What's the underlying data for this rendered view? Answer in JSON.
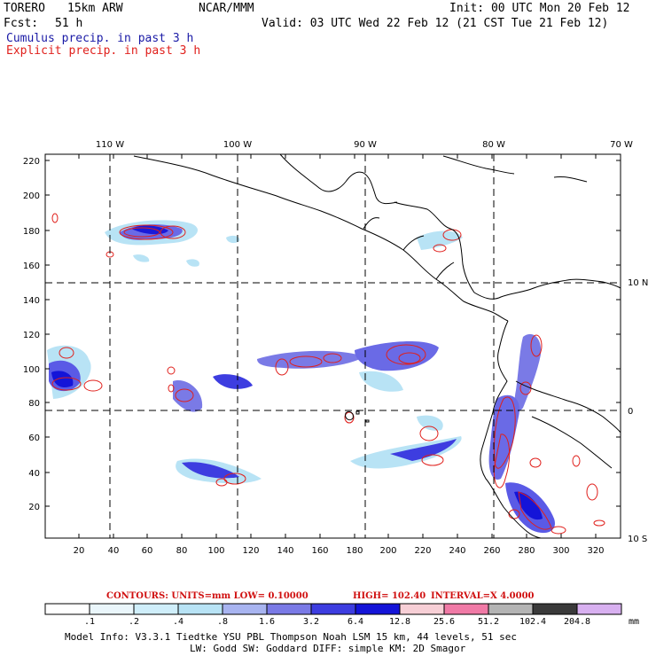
{
  "header": {
    "model": "TORERO",
    "resolution": "15km ARW",
    "org": "NCAR/MMM",
    "init": "Init: 00 UTC Mon 20 Feb 12",
    "fcst_label": "Fcst:",
    "fcst_value": "51 h",
    "valid": "Valid: 03 UTC Wed 22 Feb 12 (21 CST Tue 21 Feb 12)"
  },
  "legend": {
    "cumulus": "Cumulus precip. in past 3 h",
    "explicit": "Explicit precip. in past 3 h",
    "cumulus_color": "#1a1aa6",
    "explicit_color": "#e0201c"
  },
  "map": {
    "lon_labels": [
      "110 W",
      "100 W",
      "90 W",
      "80 W",
      "70 W"
    ],
    "lat_labels": [
      "10 N",
      "0",
      "10 S"
    ],
    "y_ticks": [
      "220",
      "200",
      "180",
      "160",
      "140",
      "120",
      "100",
      "80",
      "60",
      "40",
      "20"
    ],
    "x_ticks": [
      "20",
      "40",
      "60",
      "80",
      "100",
      "120",
      "140",
      "160",
      "180",
      "200",
      "220",
      "240",
      "260",
      "280",
      "300",
      "320"
    ]
  },
  "contours": {
    "text": "CONTOURS:  UNITS=mm  LOW= 0.10000",
    "high": "HIGH=  102.40",
    "interval": "INTERVAL=X  4.0000"
  },
  "colorbar": {
    "labels": [
      ".1",
      ".2",
      ".4",
      ".8",
      "1.6",
      "3.2",
      "6.4",
      "12.8",
      "25.6",
      "51.2",
      "102.4",
      "204.8"
    ],
    "unit": "mm",
    "colors": [
      "#ffffff",
      "#eaf6fb",
      "#cfeefa",
      "#b8e3f5",
      "#a8b4f0",
      "#7a7ae6",
      "#3d3de0",
      "#1414d8",
      "#f7cfd6",
      "#f07aa6",
      "#b4b4b4",
      "#3a3a3a",
      "#d8b0f0"
    ]
  },
  "footer": {
    "line1": "Model Info: V3.3.1   Tiedtke YSU PBL  Thompson    Noah LSM  15 km,   44 levels,   51 sec",
    "line2": "LW: Godd SW: Goddard DIFF: simple KM: 2D Smagor"
  }
}
